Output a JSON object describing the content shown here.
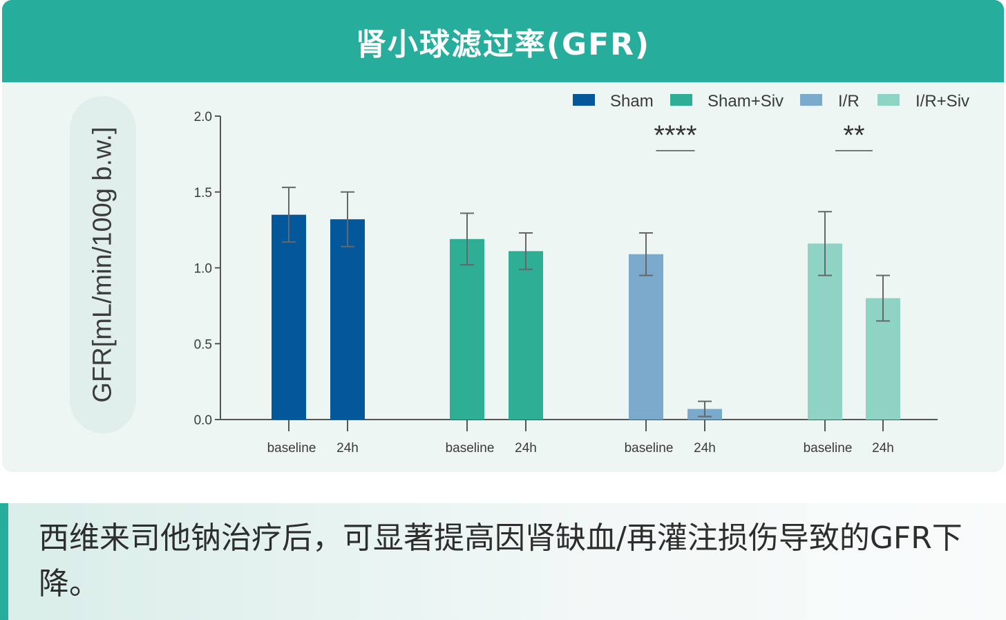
{
  "header": {
    "title": "肾小球滤过率(GFR)"
  },
  "caption": {
    "text": "西维来司他钠治疗后，可显著提高因肾缺血/再灌注损伤导致的GFR下降。"
  },
  "colors": {
    "header_bg": "#27ad9c",
    "Sham": "#02589b",
    "Sham+Siv": "#2fae96",
    "I/R": "#7aa9cb",
    "I/R+Siv": "#8fd3c4",
    "error_bar": "#666666",
    "axis": "#555555"
  },
  "chart_data": {
    "type": "bar",
    "title": "肾小球滤过率(GFR)",
    "ylabel": "GFR[mL/min/100g b.w.]",
    "xlabel": "",
    "ylim": [
      0,
      2.0
    ],
    "yticks": [
      "0.0",
      "0.5",
      "1.0",
      "1.5",
      "2.0"
    ],
    "legend_position": "top-right",
    "grid": false,
    "groups": [
      {
        "name": "Sham",
        "color": "#02589b",
        "bars": [
          {
            "label": "baseline",
            "value": 1.35,
            "err": 0.18
          },
          {
            "label": "24h",
            "value": 1.32,
            "err": 0.18
          }
        ]
      },
      {
        "name": "Sham+Siv",
        "color": "#2fae96",
        "bars": [
          {
            "label": "baseline",
            "value": 1.19,
            "err": 0.17
          },
          {
            "label": "24h",
            "value": 1.11,
            "err": 0.12
          }
        ]
      },
      {
        "name": "I/R",
        "color": "#7aa9cb",
        "bars": [
          {
            "label": "baseline",
            "value": 1.09,
            "err": 0.14
          },
          {
            "label": "24h",
            "value": 0.07,
            "err": 0.05
          }
        ]
      },
      {
        "name": "I/R+Siv",
        "color": "#8fd3c4",
        "bars": [
          {
            "label": "baseline",
            "value": 1.16,
            "err": 0.21
          },
          {
            "label": "24h",
            "value": 0.8,
            "err": 0.15
          }
        ]
      }
    ],
    "significance": [
      {
        "group": "I/R",
        "label": "****"
      },
      {
        "group": "I/R+Siv",
        "label": "**"
      }
    ]
  }
}
